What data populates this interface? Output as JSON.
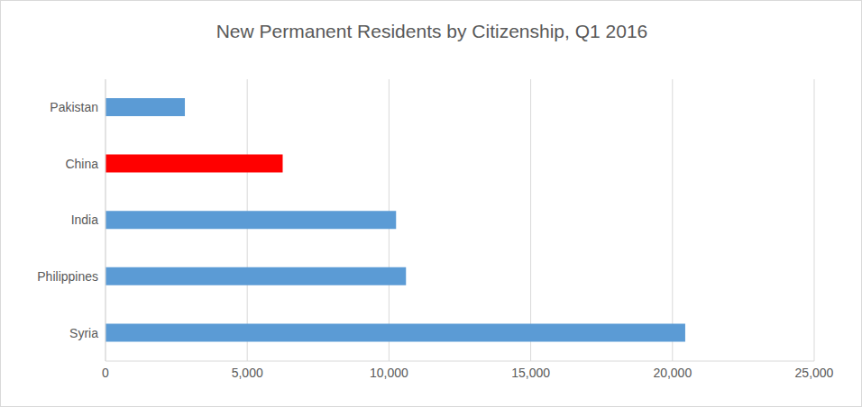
{
  "chart_data": {
    "type": "bar",
    "title": "New Permanent Residents by Citizenship, Q1 2016",
    "orientation": "horizontal",
    "categories": [
      "Pakistan",
      "China",
      "India",
      "Philippines",
      "Syria"
    ],
    "values": [
      2800,
      6250,
      10250,
      10600,
      20450
    ],
    "colors": [
      "#5b9bd5",
      "#ff0000",
      "#5b9bd5",
      "#5b9bd5",
      "#5b9bd5"
    ],
    "xlim": [
      0,
      25000
    ],
    "xticks": [
      0,
      {
        "value": 5000,
        "label": "5,000"
      },
      {
        "value": 10000,
        "label": "10,000"
      },
      {
        "value": 15000,
        "label": "15,000"
      },
      {
        "value": 20000,
        "label": "20,000"
      },
      {
        "value": 25000,
        "label": "25,000"
      }
    ],
    "grid": true
  }
}
